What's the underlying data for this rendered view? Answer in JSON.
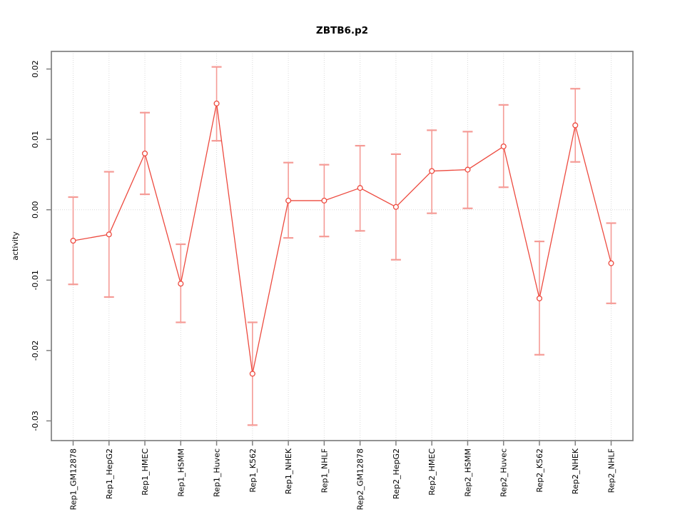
{
  "figure": {
    "title": "ZBTB6.p2",
    "ylabel": "activity"
  },
  "chart_data": {
    "type": "line",
    "title": "ZBTB6.p2",
    "xlabel": "",
    "ylabel": "activity",
    "legend": "none",
    "categories": [
      "Rep1_GM12878",
      "Rep1_HepG2",
      "Rep1_HMEC",
      "Rep1_HSMM",
      "Rep1_Huvec",
      "Rep1_K562",
      "Rep1_NHEK",
      "Rep1_NHLF",
      "Rep2_GM12878",
      "Rep2_HepG2",
      "Rep2_HMEC",
      "Rep2_HSMM",
      "Rep2_Huvec",
      "Rep2_K562",
      "Rep2_NHEK",
      "Rep2_NHLF"
    ],
    "series": [
      {
        "name": "activity",
        "values": [
          -0.0044,
          -0.0035,
          0.008,
          -0.0105,
          0.0151,
          -0.0233,
          0.0013,
          0.0013,
          0.0031,
          0.0004,
          0.0055,
          0.0057,
          0.009,
          -0.0126,
          0.012,
          -0.0076
        ],
        "ci_lower": [
          -0.0106,
          -0.0124,
          0.0022,
          -0.016,
          0.0098,
          -0.0306,
          -0.004,
          -0.0038,
          -0.003,
          -0.0071,
          -0.0005,
          0.0002,
          0.0032,
          -0.0206,
          0.0068,
          -0.0133
        ],
        "ci_upper": [
          0.0018,
          0.0054,
          0.0138,
          -0.0049,
          0.0203,
          -0.016,
          0.0067,
          0.0064,
          0.0091,
          0.0079,
          0.0113,
          0.0111,
          0.0149,
          -0.0045,
          0.0172,
          -0.0019
        ]
      }
    ],
    "yticks": {
      "values": [
        0.02,
        0.01,
        0.0,
        -0.01,
        -0.02,
        -0.03
      ],
      "labels": [
        "0.02",
        "0.01",
        "0.00",
        "-0.01",
        "-0.02",
        "-0.03"
      ]
    },
    "ylim": [
      -0.0328,
      0.0225
    ],
    "grid": {
      "vertical_dotted_per_category": true,
      "dotted_zero_line": true
    },
    "colors": {
      "line": "#ed4a3f",
      "point_stroke": "#ed4a3f",
      "point_fill": "#ffffff",
      "error_bar": "#f59b96",
      "grid": "#dadada",
      "axis": "#808080",
      "text": "#000000"
    }
  }
}
